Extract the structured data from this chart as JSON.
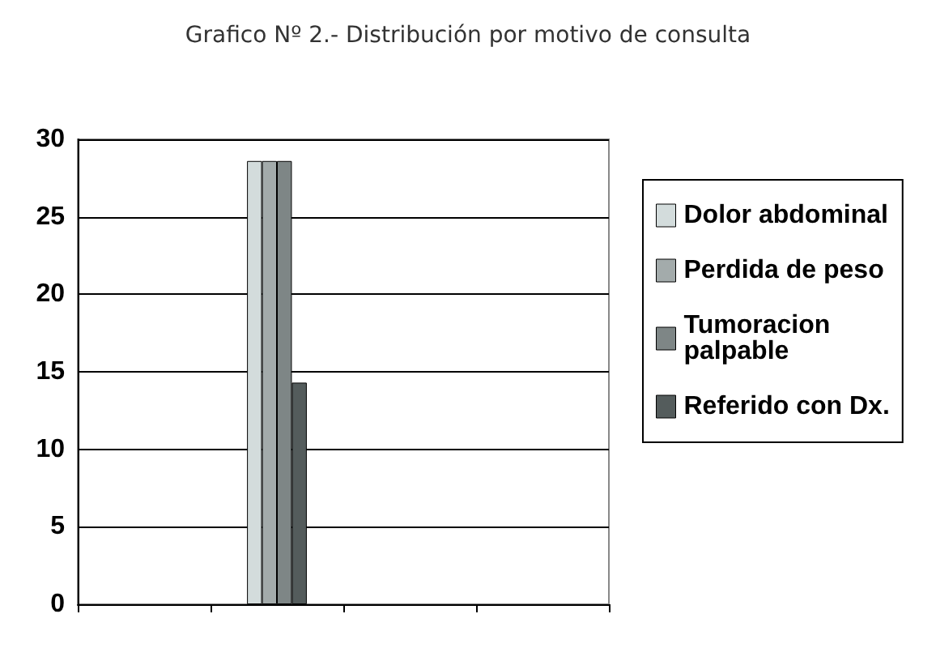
{
  "chart_data": {
    "type": "bar",
    "title": "Grafico Nº 2.- Distribución por motivo de consulta",
    "categories": [
      null,
      null,
      null,
      null
    ],
    "series": [
      {
        "name": "Dolor abdominal",
        "color": "#d3dcdc",
        "values": [
          null,
          28.6,
          null,
          null
        ]
      },
      {
        "name": "Perdida de peso",
        "color": "#a3abab",
        "values": [
          null,
          28.6,
          null,
          null
        ]
      },
      {
        "name": "Tumoracion palpable",
        "color": "#7e8686",
        "values": [
          null,
          28.6,
          null,
          null
        ]
      },
      {
        "name": "Referido con Dx.",
        "color": "#545c5c",
        "values": [
          null,
          14.3,
          null,
          null
        ]
      }
    ],
    "ylim": [
      0,
      30
    ],
    "yticks": [
      0,
      5,
      10,
      15,
      20,
      25,
      30
    ],
    "grid": "y",
    "legend": "right"
  }
}
